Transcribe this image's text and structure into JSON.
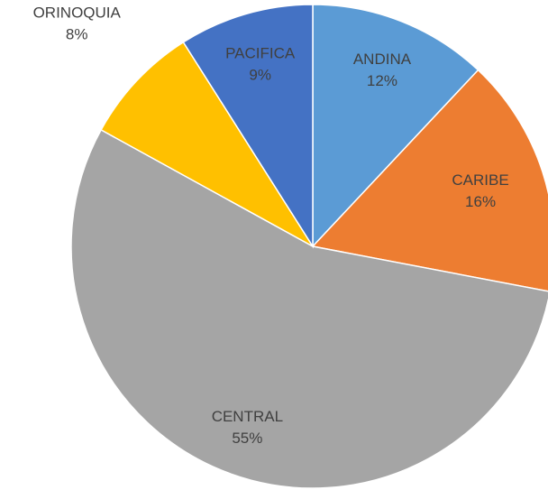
{
  "chart_data": {
    "type": "pie",
    "categories": [
      "ANDINA",
      "CARIBE",
      "CENTRAL",
      "ORINOQUIA",
      "PACIFICA"
    ],
    "values": [
      12,
      16,
      55,
      8,
      9
    ],
    "value_labels": [
      "12%",
      "16%",
      "55%",
      "8%",
      "9%"
    ],
    "colors": [
      "#5b9bd5",
      "#ed7d31",
      "#a5a5a5",
      "#ffc000",
      "#4472c4"
    ]
  }
}
